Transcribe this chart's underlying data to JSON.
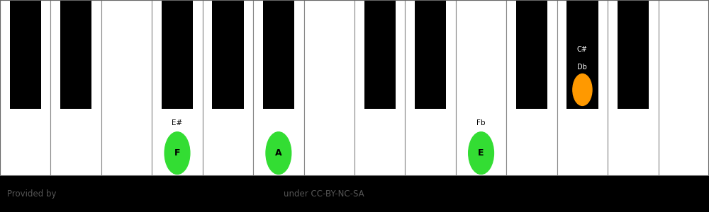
{
  "fig_width": 10.0,
  "fig_height": 3.0,
  "dpi": 100,
  "bg_color": "#000000",
  "white_key_color": "#ffffff",
  "white_key_border": "#888888",
  "black_key_color": "#000000",
  "num_white_keys": 14,
  "green_color": "#33dd33",
  "orange_color": "#ff9900",
  "highlighted_white": [
    {
      "index": 3,
      "label": "F",
      "sublabel": "E#"
    },
    {
      "index": 5,
      "label": "A",
      "sublabel": ""
    },
    {
      "index": 9,
      "label": "E",
      "sublabel": "Fb"
    }
  ],
  "highlighted_black": [
    {
      "black_index": 8,
      "label": "Db",
      "sublabel": "C#"
    }
  ],
  "black_key_positions": [
    0.5,
    1.5,
    3.5,
    4.5,
    5.5,
    7.5,
    8.5,
    10.5,
    11.5,
    12.5
  ],
  "footer_left": "Provided by",
  "footer_center": "under CC-BY-NC-SA",
  "footer_color": "#555555"
}
